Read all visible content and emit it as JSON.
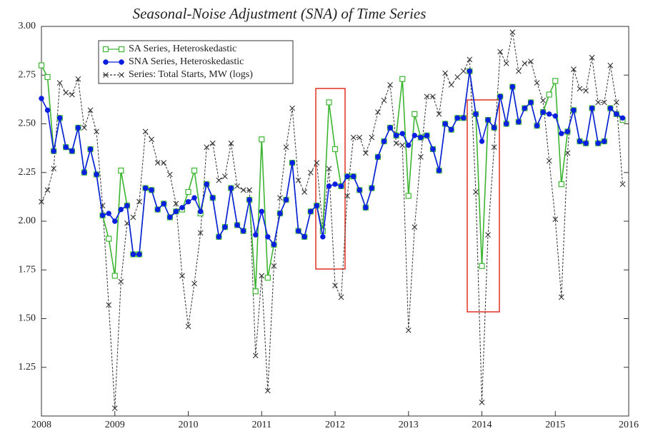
{
  "chart_data": {
    "type": "line",
    "title": "Seasonal-Noise Adjustment (SNA) of Time Series",
    "x": [
      2008,
      2008.083,
      2008.167,
      2008.25,
      2008.333,
      2008.417,
      2008.5,
      2008.583,
      2008.667,
      2008.75,
      2008.833,
      2008.917,
      2009,
      2009.083,
      2009.167,
      2009.25,
      2009.333,
      2009.417,
      2009.5,
      2009.583,
      2009.667,
      2009.75,
      2009.833,
      2009.917,
      2010,
      2010.083,
      2010.167,
      2010.25,
      2010.333,
      2010.417,
      2010.5,
      2010.583,
      2010.667,
      2010.75,
      2010.833,
      2010.917,
      2011,
      2011.083,
      2011.167,
      2011.25,
      2011.333,
      2011.417,
      2011.5,
      2011.583,
      2011.667,
      2011.75,
      2011.833,
      2011.917,
      2012,
      2012.083,
      2012.167,
      2012.25,
      2012.333,
      2012.417,
      2012.5,
      2012.583,
      2012.667,
      2012.75,
      2012.833,
      2012.917,
      2013,
      2013.083,
      2013.167,
      2013.25,
      2013.333,
      2013.417,
      2013.5,
      2013.583,
      2013.667,
      2013.75,
      2013.833,
      2013.917,
      2014,
      2014.083,
      2014.167,
      2014.25,
      2014.333,
      2014.417,
      2014.5,
      2014.583,
      2014.667,
      2014.75,
      2014.833,
      2014.917,
      2015,
      2015.083,
      2015.167,
      2015.25,
      2015.333,
      2015.417,
      2015.5,
      2015.583,
      2015.667,
      2015.75,
      2015.833,
      2015.917
    ],
    "series": [
      {
        "name": "SA Series, Heteroskedastic",
        "color": "#3cb531",
        "marker": "square",
        "values": [
          2.8,
          2.74,
          2.36,
          2.53,
          2.38,
          2.36,
          2.48,
          2.25,
          2.37,
          2.24,
          2.03,
          1.91,
          1.72,
          2.26,
          2.08,
          1.83,
          1.83,
          2.17,
          2.16,
          2.06,
          2.09,
          2.02,
          2.05,
          2.06,
          2.15,
          2.26,
          2.04,
          2.19,
          2.12,
          1.92,
          1.97,
          2.17,
          1.98,
          1.95,
          2.11,
          1.64,
          2.42,
          1.71,
          1.88,
          2.04,
          2.11,
          2.3,
          1.95,
          1.92,
          2.05,
          2.08,
          1.95,
          2.61,
          2.37,
          2.18,
          2.23,
          2.23,
          2.16,
          2.07,
          2.17,
          2.33,
          2.41,
          2.48,
          2.44,
          2.73,
          2.13,
          2.55,
          2.43,
          2.44,
          2.37,
          2.26,
          2.5,
          2.47,
          2.53,
          2.53,
          2.77,
          2.55,
          1.77,
          2.52,
          2.48,
          2.64,
          2.5,
          2.69,
          2.51,
          2.58,
          2.61,
          2.49,
          2.56,
          2.65,
          2.72,
          2.19,
          2.46,
          2.57,
          2.41,
          2.4,
          2.58,
          2.4,
          2.41,
          2.58,
          2.55,
          2.52
        ]
      },
      {
        "name": "SNA Series, Heteroskedastic",
        "color": "#0a1ee0",
        "marker": "circle",
        "values": [
          2.63,
          2.57,
          2.36,
          2.53,
          2.38,
          2.36,
          2.48,
          2.25,
          2.37,
          2.24,
          2.03,
          2.04,
          2.0,
          2.06,
          2.08,
          1.83,
          1.83,
          2.17,
          2.16,
          2.06,
          2.09,
          2.02,
          2.05,
          2.07,
          2.1,
          2.12,
          2.05,
          2.19,
          2.12,
          1.92,
          1.97,
          2.17,
          1.98,
          1.95,
          2.11,
          1.93,
          2.05,
          1.92,
          1.88,
          2.04,
          2.11,
          2.3,
          1.95,
          1.92,
          2.05,
          2.08,
          1.92,
          2.18,
          2.19,
          2.18,
          2.23,
          2.23,
          2.16,
          2.07,
          2.17,
          2.33,
          2.41,
          2.48,
          2.44,
          2.45,
          2.39,
          2.44,
          2.43,
          2.44,
          2.37,
          2.26,
          2.5,
          2.47,
          2.53,
          2.53,
          2.77,
          2.55,
          2.41,
          2.52,
          2.48,
          2.64,
          2.5,
          2.69,
          2.51,
          2.58,
          2.61,
          2.49,
          2.56,
          2.55,
          2.54,
          2.45,
          2.46,
          2.57,
          2.41,
          2.4,
          2.58,
          2.4,
          2.41,
          2.58,
          2.55,
          2.53
        ]
      },
      {
        "name": "Series: Total Starts, MW (logs)",
        "color": "#333333",
        "marker": "x",
        "values": [
          2.1,
          2.16,
          2.27,
          2.71,
          2.66,
          2.65,
          2.73,
          2.48,
          2.57,
          2.46,
          2.08,
          1.57,
          1.04,
          1.69,
          1.99,
          2.02,
          2.1,
          2.46,
          2.42,
          2.3,
          2.3,
          2.24,
          2.09,
          1.72,
          1.46,
          1.68,
          1.94,
          2.38,
          2.4,
          2.21,
          2.23,
          2.4,
          2.18,
          2.16,
          2.16,
          1.31,
          1.72,
          1.13,
          1.77,
          2.12,
          2.38,
          2.58,
          2.21,
          2.15,
          2.25,
          2.3,
          1.97,
          2.27,
          1.67,
          1.61,
          2.13,
          2.43,
          2.43,
          2.35,
          2.43,
          2.56,
          2.62,
          2.7,
          2.4,
          2.39,
          1.44,
          1.97,
          2.33,
          2.64,
          2.64,
          2.55,
          2.76,
          2.7,
          2.74,
          2.77,
          2.83,
          2.15,
          1.07,
          1.93,
          2.38,
          2.87,
          2.81,
          2.97,
          2.77,
          2.81,
          2.82,
          2.71,
          2.62,
          2.31,
          2.01,
          1.61,
          2.35,
          2.78,
          2.68,
          2.67,
          2.84,
          2.61,
          2.61,
          2.8,
          2.61,
          2.19
        ]
      }
    ],
    "xlim": [
      2008,
      2016
    ],
    "xticks": [
      2008,
      2009,
      2010,
      2011,
      2012,
      2013,
      2014,
      2015,
      2016
    ],
    "ylim": [
      1,
      3
    ],
    "yticks": [
      1.25,
      {
        "value": 1.5,
        "label": "1.50"
      },
      1.75,
      {
        "value": 2,
        "label": "2.00"
      },
      2.25,
      {
        "value": 2.5,
        "label": "2.50"
      },
      2.75,
      {
        "value": 3,
        "label": "3.00"
      }
    ],
    "legend": "upper left"
  }
}
